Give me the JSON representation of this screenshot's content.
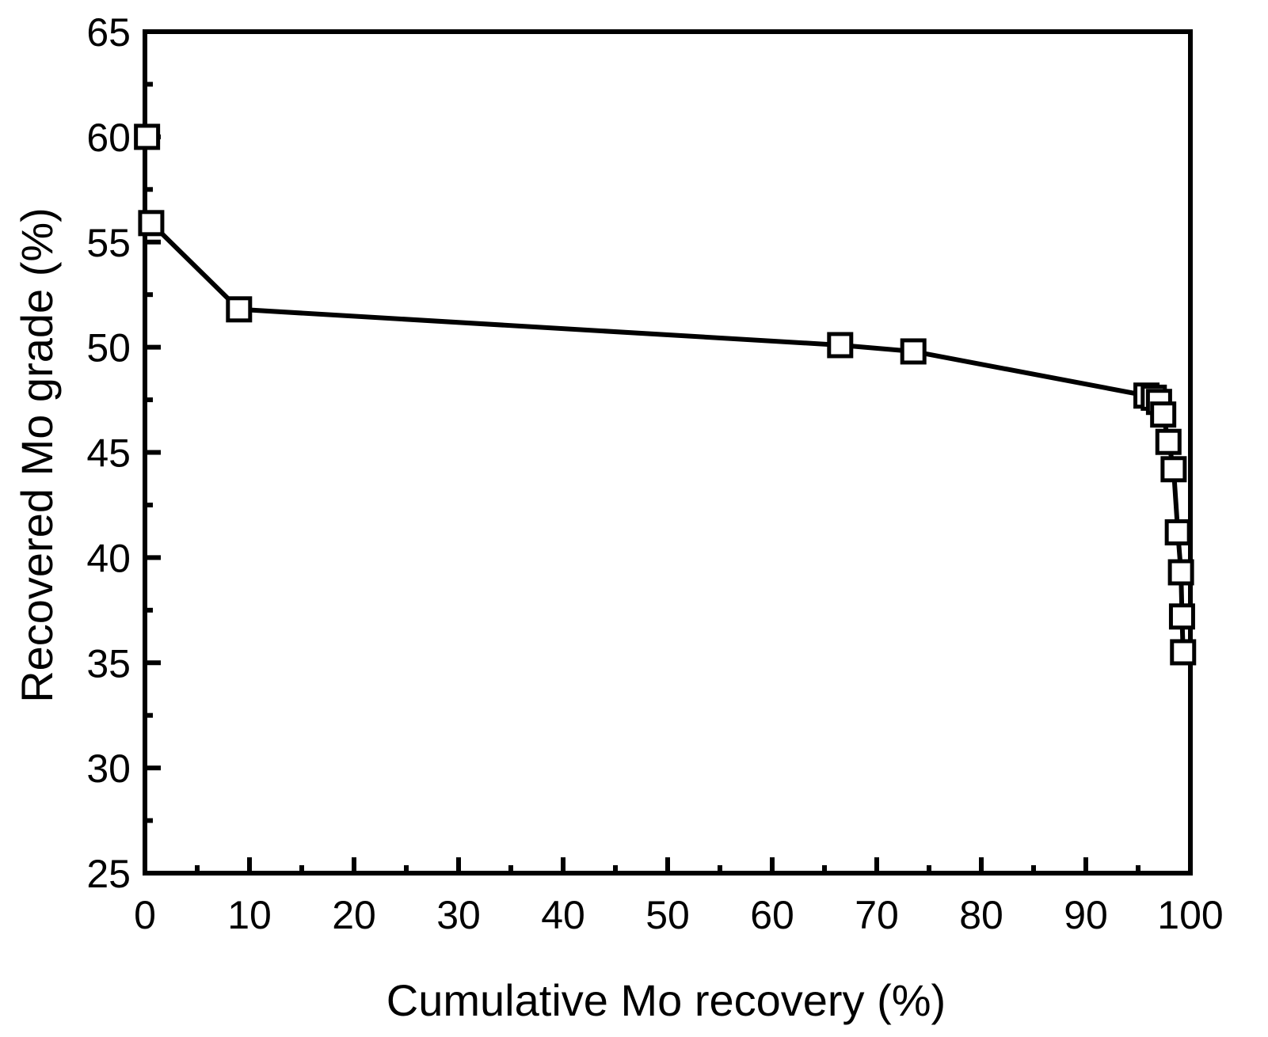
{
  "chart_data": {
    "type": "line",
    "title": "",
    "xlabel": "Cumulative Mo recovery (%)",
    "ylabel": "Recovered Mo grade (%)",
    "xlim": [
      0,
      100
    ],
    "ylim": [
      25,
      65
    ],
    "x_ticks": [
      0,
      10,
      20,
      30,
      40,
      50,
      60,
      70,
      80,
      90,
      100
    ],
    "y_ticks": [
      25,
      30,
      35,
      40,
      45,
      50,
      55,
      60,
      65
    ],
    "x_tick_labels": [
      "0",
      "10",
      "20",
      "30",
      "40",
      "50",
      "60",
      "70",
      "80",
      "90",
      "100"
    ],
    "y_tick_labels": [
      "25",
      "30",
      "35",
      "40",
      "45",
      "50",
      "55",
      "60",
      "65"
    ],
    "grid": false,
    "legend": "none",
    "series": [
      {
        "marker": "open-square",
        "color": "#000000",
        "points": [
          {
            "x": 0.2,
            "y": 60.0
          },
          {
            "x": 0.6,
            "y": 55.9
          },
          {
            "x": 9.0,
            "y": 51.8
          },
          {
            "x": 66.5,
            "y": 50.1
          },
          {
            "x": 73.5,
            "y": 49.8
          },
          {
            "x": 95.8,
            "y": 47.7
          },
          {
            "x": 96.5,
            "y": 47.6
          },
          {
            "x": 97.0,
            "y": 47.4
          },
          {
            "x": 97.4,
            "y": 46.8
          },
          {
            "x": 97.9,
            "y": 45.5
          },
          {
            "x": 98.4,
            "y": 44.2
          },
          {
            "x": 98.8,
            "y": 41.2
          },
          {
            "x": 99.1,
            "y": 39.3
          },
          {
            "x": 99.2,
            "y": 37.2
          },
          {
            "x": 99.3,
            "y": 35.5
          }
        ]
      }
    ]
  }
}
